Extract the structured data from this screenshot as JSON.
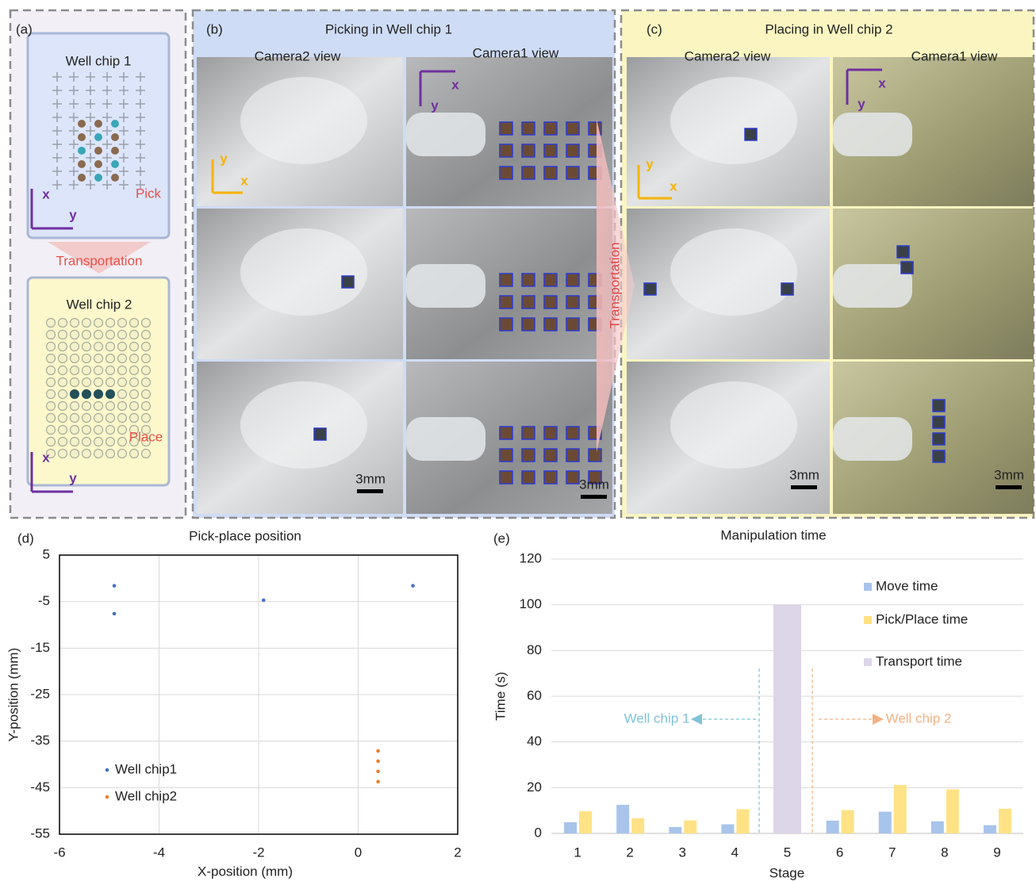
{
  "panels": {
    "axes": {
      "x": "x",
      "y": "y"
    },
    "scale": "3mm",
    "transport": "Transportation",
    "a": {
      "label": "(a)",
      "chip1": "Well chip 1",
      "pick": "Pick",
      "transport": "Transportation",
      "chip2": "Well chip 2",
      "place": "Place"
    },
    "b": {
      "label": "(b)",
      "title": "Picking in Well chip 1",
      "camera2": "Camera2 view",
      "camera1": "Camera1 view"
    },
    "c": {
      "label": "(c)",
      "title": "Placing in Well chip 2",
      "camera2": "Camera2 view",
      "camera1": "Camera1 view"
    }
  },
  "chart_data": [
    {
      "type": "scatter",
      "panel_label": "(d)",
      "title": "Pick-place position",
      "x_label": "X-position (mm)",
      "y_label": "Y-position (mm)",
      "xlim": [
        -6,
        2
      ],
      "xticks": [
        -6,
        -4,
        -2,
        0,
        2
      ],
      "ylim": [
        -55,
        5
      ],
      "yticks": [
        5,
        -5,
        -15,
        -25,
        -35,
        -45,
        -55
      ],
      "grid": true,
      "legend": "lower left",
      "series": [
        {
          "name": "Well chip1",
          "color": "#4472c4",
          "x": [
            -4.9,
            -4.9,
            -1.9,
            1.1
          ],
          "values": [
            -1.6,
            -7.6,
            -4.7,
            -1.6
          ]
        },
        {
          "name": "Well chip2",
          "color": "#ed7d31",
          "x": [
            0.4,
            0.4,
            0.4,
            0.4
          ],
          "values": [
            -37.1,
            -39.3,
            -41.5,
            -43.7
          ]
        }
      ]
    },
    {
      "type": "bar",
      "panel_label": "(e)",
      "title": "Manipulation time",
      "x_label": "Stage",
      "y_label": "Time (s)",
      "categories": [
        "1",
        "2",
        "3",
        "4",
        "5",
        "6",
        "7",
        "8",
        "9"
      ],
      "ylim": [
        0,
        120
      ],
      "yticks": [
        0,
        20,
        40,
        60,
        80,
        100,
        120
      ],
      "grid": true,
      "legend": "upper right",
      "series": [
        {
          "name": "Move time",
          "color": "#a9c4eb",
          "values": [
            4.9,
            12.5,
            2.8,
            4,
            null,
            5.6,
            9.5,
            5.3,
            3.6
          ]
        },
        {
          "name": "Pick/Place time",
          "color": "#ffe285",
          "values": [
            9.7,
            6.6,
            5.7,
            10.6,
            null,
            10.2,
            21.2,
            19.3,
            10.8
          ]
        },
        {
          "name": "Transport time",
          "color": "#ddd5e8",
          "values": [
            null,
            null,
            null,
            null,
            100,
            null,
            null,
            null,
            null
          ]
        }
      ],
      "annotations": [
        {
          "text": "Well chip 1",
          "color": "#7fc3d8"
        },
        {
          "text": "Well chip 2",
          "color": "#f4b183"
        }
      ]
    }
  ]
}
